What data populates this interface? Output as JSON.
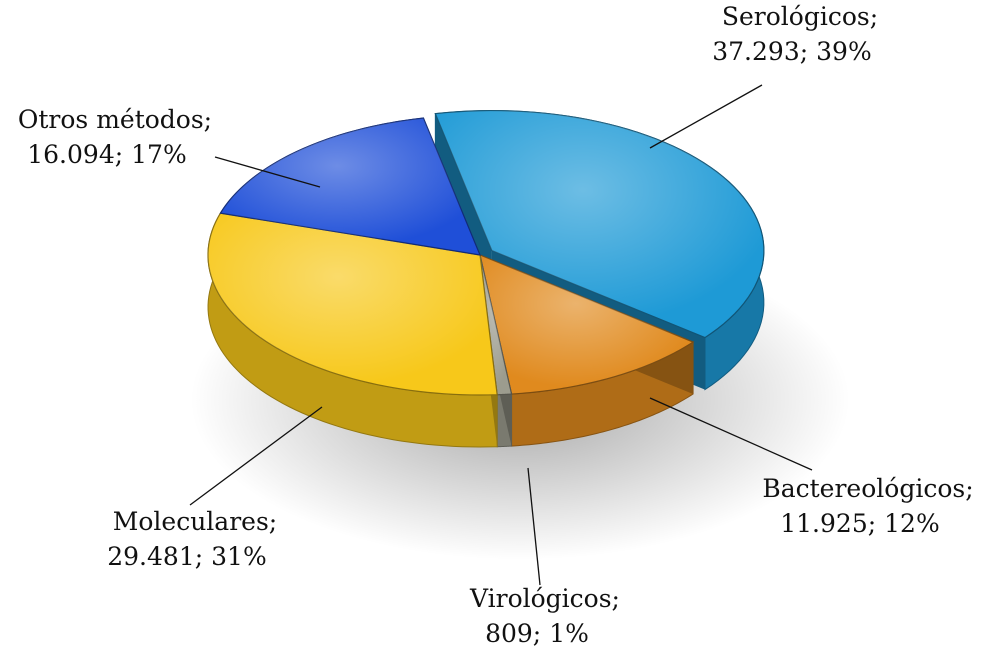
{
  "chart_data": {
    "type": "pie3d",
    "categories": [
      "Serológicos;",
      "Bactereológicos;",
      "Virológicos;",
      "Moleculares;",
      "Otros métodos;"
    ],
    "values": [
      37293,
      11925,
      809,
      29481,
      16094
    ],
    "value_labels": [
      "37.293;",
      "11.925;",
      "809;",
      "29.481;",
      "16.094;"
    ],
    "percents": [
      39,
      12,
      1,
      31,
      17
    ],
    "percent_labels": [
      "39%",
      "12%",
      "1%",
      "31%",
      "17%"
    ],
    "colors": [
      "#1e9ad6",
      "#e08a1e",
      "#9c9c8e",
      "#f7c81a",
      "#1f4fd8"
    ]
  }
}
